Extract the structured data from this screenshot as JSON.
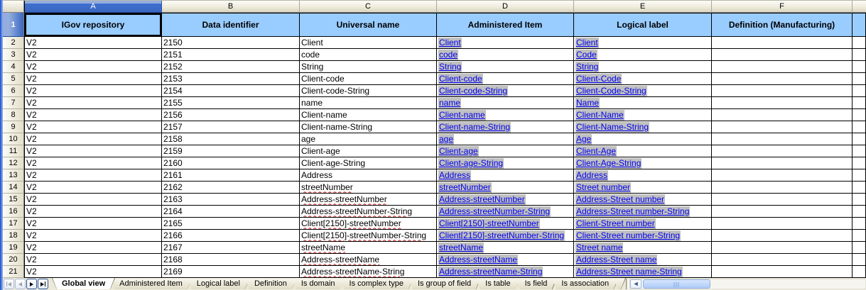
{
  "sheet": {
    "selected_cell": "A1",
    "selected_column": "A",
    "selected_row": "1",
    "column_letters": [
      "A",
      "B",
      "C",
      "D",
      "E",
      "F"
    ],
    "header_labels": [
      "IGov repository",
      "Data identifier",
      "Universal name",
      "Administered Item",
      "Logical label",
      "Definition (Manufacturing)"
    ],
    "rows": [
      {
        "n": "2",
        "a": "V2",
        "b": "2150",
        "c": "Client",
        "d": "Client",
        "e": "Client",
        "f": "",
        "misspelled": false
      },
      {
        "n": "3",
        "a": "V2",
        "b": "2151",
        "c": "code",
        "d": "code",
        "e": "Code",
        "f": "",
        "misspelled": false
      },
      {
        "n": "4",
        "a": "V2",
        "b": "2152",
        "c": "String",
        "d": "String",
        "e": "String",
        "f": "",
        "misspelled": false
      },
      {
        "n": "5",
        "a": "V2",
        "b": "2153",
        "c": "Client-code",
        "d": "Client-code",
        "e": "Client-Code",
        "f": "",
        "misspelled": false
      },
      {
        "n": "6",
        "a": "V2",
        "b": "2154",
        "c": "Client-code-String",
        "d": "Client-code-String",
        "e": "Client-Code-String",
        "f": "",
        "misspelled": false
      },
      {
        "n": "7",
        "a": "V2",
        "b": "2155",
        "c": "name",
        "d": "name",
        "e": "Name",
        "f": "",
        "misspelled": false
      },
      {
        "n": "8",
        "a": "V2",
        "b": "2156",
        "c": "Client-name",
        "d": "Client-name",
        "e": "Client-Name",
        "f": "",
        "misspelled": false
      },
      {
        "n": "9",
        "a": "V2",
        "b": "2157",
        "c": "Client-name-String",
        "d": "Client-name-String",
        "e": "Client-Name-String",
        "f": "",
        "misspelled": false
      },
      {
        "n": "10",
        "a": "V2",
        "b": "2158",
        "c": "age",
        "d": "age",
        "e": "Age",
        "f": "",
        "misspelled": false
      },
      {
        "n": "11",
        "a": "V2",
        "b": "2159",
        "c": "Client-age",
        "d": "Client-age",
        "e": "Client-Age",
        "f": "",
        "misspelled": false
      },
      {
        "n": "12",
        "a": "V2",
        "b": "2160",
        "c": "Client-age-String",
        "d": "Client-age-String",
        "e": "Client-Age-String",
        "f": "",
        "misspelled": false
      },
      {
        "n": "13",
        "a": "V2",
        "b": "2161",
        "c": "Address",
        "d": "Address",
        "e": "Address",
        "f": "",
        "misspelled": false
      },
      {
        "n": "14",
        "a": "V2",
        "b": "2162",
        "c": "streetNumber",
        "d": "streetNumber",
        "e": "Street number",
        "f": "",
        "misspelled": true
      },
      {
        "n": "15",
        "a": "V2",
        "b": "2163",
        "c": "Address-streetNumber",
        "d": "Address-streetNumber",
        "e": "Address-Street number",
        "f": "",
        "misspelled": true
      },
      {
        "n": "16",
        "a": "V2",
        "b": "2164",
        "c": "Address-streetNumber-String",
        "d": "Address-streetNumber-String",
        "e": "Address-Street number-String",
        "f": "",
        "misspelled": true
      },
      {
        "n": "17",
        "a": "V2",
        "b": "2165",
        "c": "Client[2150]-streetNumber",
        "d": "Client[2150]-streetNumber",
        "e": "Client-Street number",
        "f": "",
        "misspelled": true
      },
      {
        "n": "18",
        "a": "V2",
        "b": "2166",
        "c": "Client[2150]-streetNumber-String",
        "d": "Client[2150]-streetNumber-String",
        "e": "Client-Street number-String",
        "f": "",
        "misspelled": true
      },
      {
        "n": "19",
        "a": "V2",
        "b": "2167",
        "c": "streetName",
        "d": "streetName",
        "e": "Street name",
        "f": "",
        "misspelled": true
      },
      {
        "n": "20",
        "a": "V2",
        "b": "2168",
        "c": "Address-streetName",
        "d": "Address-streetName",
        "e": "Address-Street name",
        "f": "",
        "misspelled": true
      },
      {
        "n": "21",
        "a": "V2",
        "b": "2169",
        "c": "Address-streetName-String",
        "d": "Address-streetName-String",
        "e": "Address-Street name-String",
        "f": "",
        "misspelled": true
      }
    ]
  },
  "colors": {
    "header_fill": "#99CCFF",
    "hyperlink": "#0000EE",
    "hyperlink_shade": "#C0C0C0",
    "selected_header": "#3A6BCE",
    "spellcheck_underline": "#CC2222",
    "grid_border": "#000000"
  },
  "tabs": {
    "active": "Global view",
    "items": [
      "Global view",
      "Administered Item",
      "Logical label",
      "Definition",
      "Is domain",
      "Is complex type",
      "Is group of field",
      "Is table",
      "Is field",
      "Is association"
    ]
  },
  "nav_icons": [
    {
      "name": "first-sheet-icon",
      "enabled": false
    },
    {
      "name": "previous-sheet-icon",
      "enabled": false
    },
    {
      "name": "next-sheet-icon",
      "enabled": true
    },
    {
      "name": "last-sheet-icon",
      "enabled": true
    }
  ],
  "scrollbar": {
    "left_arrow_icon": "scroll-left-icon"
  }
}
